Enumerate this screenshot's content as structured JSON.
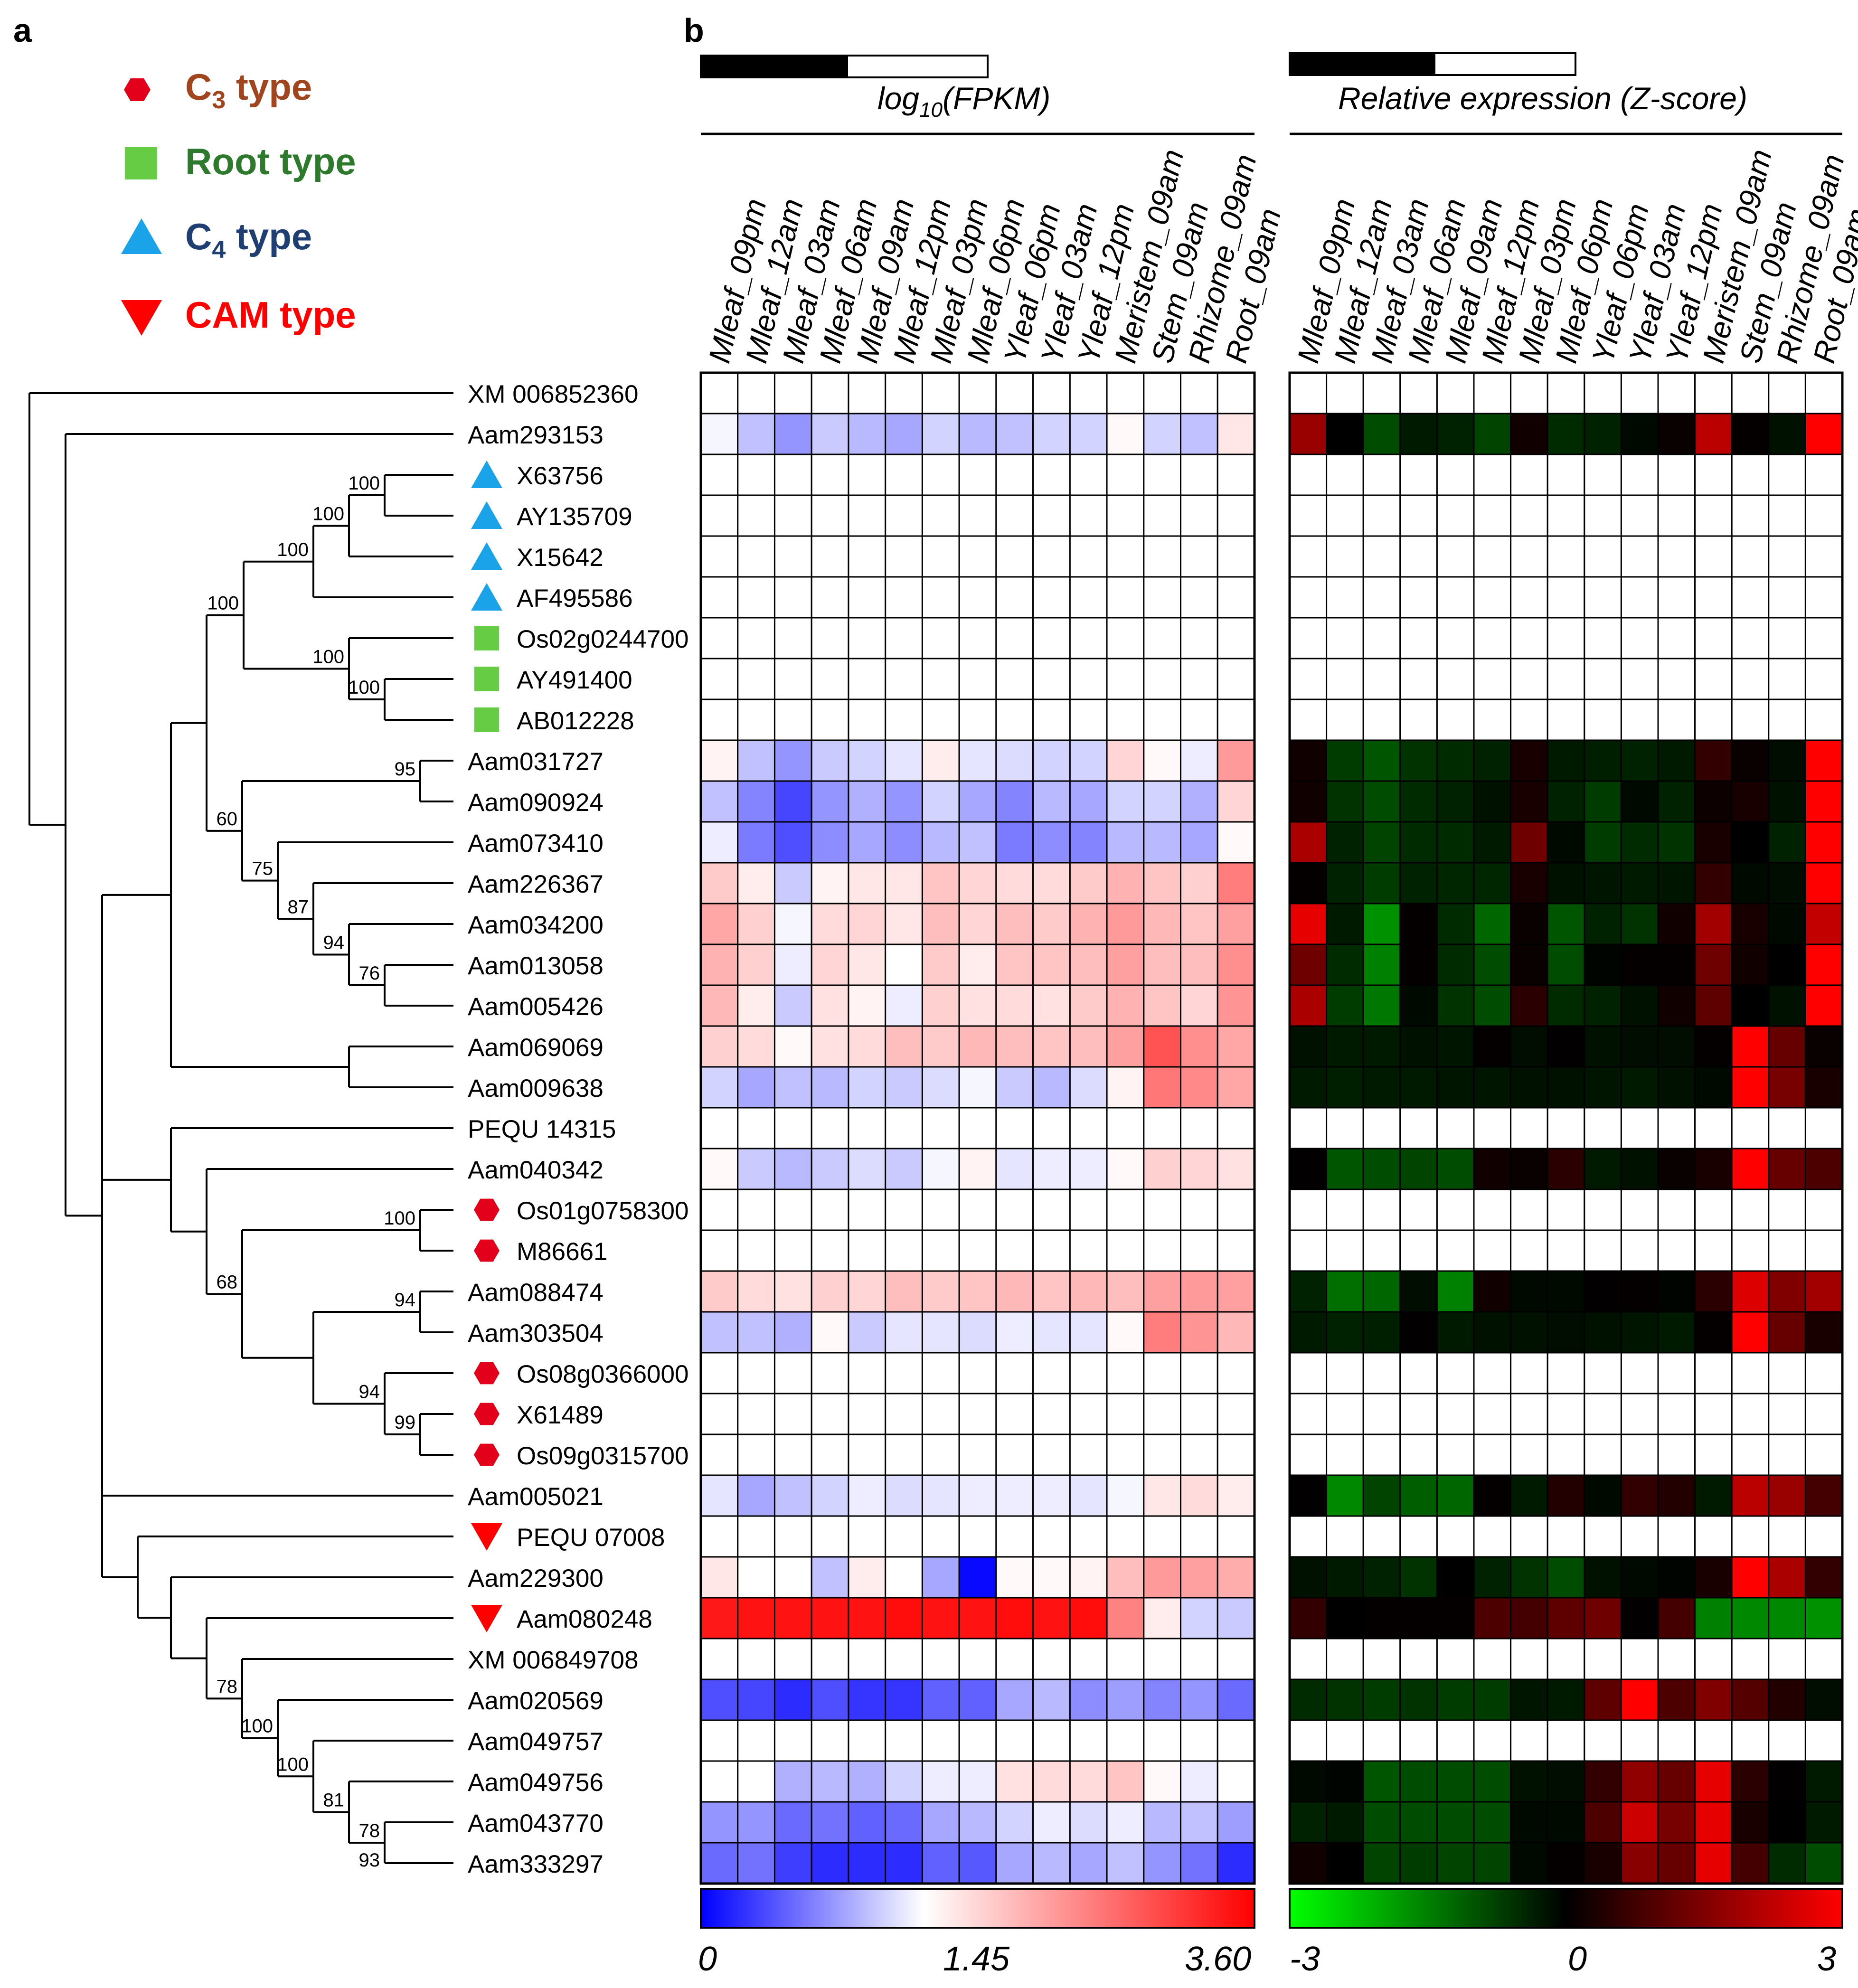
{
  "panels": {
    "a": "a",
    "b": "b"
  },
  "legend": [
    {
      "shape": "hexagon",
      "color": "#e3001b",
      "text_color": "#a0451e",
      "label": "C",
      "subscript": "3",
      "suffix": " type"
    },
    {
      "shape": "square",
      "color": "#66cc44",
      "text_color": "#2d7a2d",
      "label": "Root type",
      "subscript": "",
      "suffix": ""
    },
    {
      "shape": "triangle-up",
      "color": "#1aa3e8",
      "text_color": "#1f3f73",
      "label": "C",
      "subscript": "4",
      "suffix": " type"
    },
    {
      "shape": "triangle-down",
      "color": "#ff0000",
      "text_color": "#ff0000",
      "label": "CAM type",
      "subscript": "",
      "suffix": ""
    }
  ],
  "columns": [
    "Mleaf_09pm",
    "Mleaf_12am",
    "Mleaf_03am",
    "Mleaf_06am",
    "Mleaf_09am",
    "Mleaf_12pm",
    "Mleaf_03pm",
    "Mleaf_06pm",
    "Yleaf_06pm",
    "Yleaf_03am",
    "Yleaf_12pm",
    "Meristem_09am",
    "Stem_09am",
    "Rhizome_09am",
    "Root_09am"
  ],
  "fpkm_title": {
    "prefix": "log",
    "sub": "10",
    "suffix": "(FPKM)"
  },
  "z_title": "Relative expression (Z-score)",
  "fpkm_scale": {
    "min": "0",
    "mid": "1.45",
    "max": "3.60",
    "vmin": 0,
    "vmid": 1.45,
    "vmax": 3.6,
    "colors": [
      "#0000ff",
      "#ffffff",
      "#ff0000"
    ]
  },
  "z_scale": {
    "min": "-3",
    "mid": "0",
    "max": "3",
    "vmin": -3,
    "vmax": 3,
    "colors": [
      "#00ff00",
      "#000000",
      "#ff0000"
    ]
  },
  "genes": [
    {
      "name": "XM 006852360",
      "marker": null,
      "fpkm": null,
      "z": null
    },
    {
      "name": "Aam293153",
      "marker": null,
      "fpkm": [
        1.4,
        1.1,
        0.85,
        1.15,
        1.05,
        0.95,
        1.2,
        1.05,
        1.1,
        1.2,
        1.2,
        1.5,
        1.2,
        1.1,
        1.65
      ],
      "z": [
        1.8,
        0,
        -0.9,
        -0.3,
        -0.4,
        -0.8,
        0.2,
        -0.5,
        -0.4,
        -0.1,
        0.1,
        2.2,
        0.05,
        -0.2,
        3
      ]
    },
    {
      "name": "X63756",
      "marker": "triangle-up",
      "fpkm": null,
      "z": null
    },
    {
      "name": "AY135709",
      "marker": "triangle-up",
      "fpkm": null,
      "z": null
    },
    {
      "name": "X15642",
      "marker": "triangle-up",
      "fpkm": null,
      "z": null
    },
    {
      "name": "AF495586",
      "marker": "triangle-up",
      "fpkm": null,
      "z": null
    },
    {
      "name": "Os02g0244700",
      "marker": "square",
      "fpkm": null,
      "z": null
    },
    {
      "name": "AY491400",
      "marker": "square",
      "fpkm": null,
      "z": null
    },
    {
      "name": "AB012228",
      "marker": "square",
      "fpkm": null,
      "z": null
    },
    {
      "name": "Aam031727",
      "marker": null,
      "fpkm": [
        1.55,
        1.1,
        0.85,
        1.15,
        1.2,
        1.3,
        1.6,
        1.3,
        1.25,
        1.2,
        1.2,
        1.8,
        1.5,
        1.35,
        2.3
      ],
      "z": [
        0.2,
        -0.7,
        -1.0,
        -0.6,
        -0.5,
        -0.4,
        0.3,
        -0.3,
        -0.35,
        -0.4,
        -0.3,
        0.6,
        0.1,
        -0.15,
        3
      ]
    },
    {
      "name": "Aam090924",
      "marker": null,
      "fpkm": [
        1.1,
        0.75,
        0.4,
        0.85,
        1.0,
        0.85,
        1.2,
        0.95,
        0.75,
        1.05,
        0.95,
        1.2,
        1.2,
        1.0,
        1.8
      ],
      "z": [
        0.2,
        -0.6,
        -0.9,
        -0.5,
        -0.4,
        -0.2,
        0.3,
        -0.4,
        -0.7,
        -0.1,
        -0.4,
        0.15,
        0.3,
        -0.2,
        3
      ]
    },
    {
      "name": "Aam073410",
      "marker": null,
      "fpkm": [
        1.35,
        0.7,
        0.45,
        0.8,
        0.95,
        0.8,
        1.05,
        1.1,
        0.7,
        0.8,
        0.75,
        1.05,
        1.05,
        0.95,
        1.5
      ],
      "z": [
        2.0,
        -0.4,
        -0.8,
        -0.5,
        -0.5,
        -0.3,
        1.3,
        -0.1,
        -0.7,
        -0.5,
        -0.6,
        0.3,
        0.0,
        -0.4,
        3
      ]
    },
    {
      "name": "Aam226367",
      "marker": null,
      "fpkm": [
        1.9,
        1.6,
        1.15,
        1.55,
        1.65,
        1.65,
        1.95,
        1.8,
        1.75,
        1.75,
        1.9,
        2.1,
        1.95,
        1.85,
        2.55
      ],
      "z": [
        0.05,
        -0.4,
        -0.7,
        -0.4,
        -0.45,
        -0.45,
        0.3,
        -0.2,
        -0.25,
        -0.3,
        -0.25,
        0.6,
        -0.1,
        -0.15,
        3
      ]
    },
    {
      "name": "Aam034200",
      "marker": null,
      "fpkm": [
        2.2,
        1.85,
        1.4,
        1.75,
        1.8,
        1.65,
        2.0,
        1.8,
        2.0,
        1.9,
        2.1,
        2.3,
        2.05,
        1.95,
        2.25
      ],
      "z": [
        2.7,
        -0.3,
        -1.7,
        0.05,
        -0.5,
        -1.2,
        0.1,
        -1.0,
        -0.4,
        -0.6,
        0.2,
        1.9,
        0.3,
        -0.1,
        2.3
      ]
    },
    {
      "name": "Aam013058",
      "marker": null,
      "fpkm": [
        2.1,
        1.85,
        1.35,
        1.8,
        1.65,
        1.45,
        1.9,
        1.6,
        1.95,
        1.95,
        2.0,
        2.25,
        2.0,
        2.0,
        2.4
      ],
      "z": [
        1.3,
        -0.5,
        -1.5,
        0.05,
        -0.5,
        -0.9,
        0.1,
        -0.9,
        -0.05,
        0.05,
        0.05,
        1.3,
        0.2,
        0.0,
        3
      ]
    },
    {
      "name": "Aam005426",
      "marker": null,
      "fpkm": [
        2.05,
        1.6,
        1.15,
        1.7,
        1.55,
        1.35,
        1.85,
        1.7,
        1.75,
        1.7,
        1.9,
        2.1,
        1.95,
        1.8,
        2.35
      ],
      "z": [
        2.0,
        -0.7,
        -1.4,
        -0.1,
        -0.6,
        -0.9,
        0.5,
        -0.5,
        -0.4,
        -0.2,
        0.2,
        1.1,
        0.0,
        -0.2,
        3
      ]
    },
    {
      "name": "Aam069069",
      "marker": null,
      "fpkm": [
        1.85,
        1.75,
        1.5,
        1.7,
        1.75,
        2.0,
        1.9,
        2.05,
        2.0,
        1.95,
        2.0,
        2.25,
        2.9,
        2.4,
        2.2
      ],
      "z": [
        -0.2,
        -0.3,
        -0.3,
        -0.2,
        -0.25,
        0.05,
        -0.15,
        0.02,
        -0.2,
        -0.15,
        -0.15,
        0.05,
        3,
        1.2,
        0.1
      ]
    },
    {
      "name": "Aam009638",
      "marker": null,
      "fpkm": [
        1.2,
        0.95,
        1.1,
        1.05,
        1.2,
        1.15,
        1.25,
        1.4,
        1.15,
        1.05,
        1.25,
        1.55,
        2.6,
        2.45,
        2.2
      ],
      "z": [
        -0.3,
        -0.35,
        -0.3,
        -0.3,
        -0.25,
        -0.25,
        -0.2,
        -0.2,
        -0.25,
        -0.3,
        -0.2,
        -0.1,
        3,
        1.4,
        0.3
      ]
    },
    {
      "name": "PEQU 14315",
      "marker": null,
      "fpkm": null,
      "z": null
    },
    {
      "name": "Aam040342",
      "marker": null,
      "fpkm": [
        1.5,
        1.15,
        1.05,
        1.15,
        1.25,
        1.15,
        1.4,
        1.55,
        1.3,
        1.35,
        1.35,
        1.5,
        1.85,
        1.8,
        1.7
      ],
      "z": [
        0.02,
        -1.0,
        -0.9,
        -0.8,
        -0.9,
        0.2,
        0.1,
        0.5,
        -0.3,
        -0.2,
        0.1,
        0.3,
        3,
        1.2,
        0.9
      ]
    },
    {
      "name": "Os01g0758300",
      "marker": "hexagon",
      "fpkm": null,
      "z": null
    },
    {
      "name": "M86661",
      "marker": "hexagon",
      "fpkm": null,
      "z": null
    },
    {
      "name": "Aam088474",
      "marker": null,
      "fpkm": [
        1.9,
        1.75,
        1.7,
        1.85,
        1.8,
        2.0,
        1.9,
        1.95,
        2.05,
        1.95,
        2.05,
        2.0,
        2.25,
        2.3,
        2.25
      ],
      "z": [
        -0.4,
        -1.3,
        -1.2,
        -0.15,
        -1.5,
        0.2,
        -0.1,
        -0.1,
        0.02,
        0.05,
        -0.05,
        0.5,
        2.6,
        1.5,
        1.9
      ]
    },
    {
      "name": "Aam303504",
      "marker": null,
      "fpkm": [
        1.1,
        1.1,
        1.0,
        1.5,
        1.15,
        1.3,
        1.3,
        1.25,
        1.35,
        1.3,
        1.3,
        1.5,
        2.55,
        2.35,
        2.05
      ],
      "z": [
        -0.3,
        -0.4,
        -0.35,
        0.02,
        -0.3,
        -0.2,
        -0.2,
        -0.15,
        -0.2,
        -0.25,
        -0.3,
        0.05,
        3,
        1.2,
        0.3
      ]
    },
    {
      "name": "Os08g0366000",
      "marker": "hexagon",
      "fpkm": null,
      "z": null
    },
    {
      "name": "X61489",
      "marker": "hexagon",
      "fpkm": null,
      "z": null
    },
    {
      "name": "Os09g0315700",
      "marker": "hexagon",
      "fpkm": null,
      "z": null
    },
    {
      "name": "Aam005021",
      "marker": null,
      "fpkm": [
        1.3,
        0.95,
        1.1,
        1.2,
        1.35,
        1.25,
        1.3,
        1.35,
        1.35,
        1.35,
        1.3,
        1.4,
        1.65,
        1.75,
        1.6
      ],
      "z": [
        0.02,
        -1.6,
        -0.8,
        -1.1,
        -1.2,
        0.05,
        -0.3,
        0.4,
        -0.1,
        0.6,
        0.4,
        -0.3,
        2.2,
        1.8,
        0.8
      ]
    },
    {
      "name": "PEQU 07008",
      "marker": "triangle-down",
      "fpkm": null,
      "z": null
    },
    {
      "name": "Aam229300",
      "marker": null,
      "fpkm": [
        1.65,
        1.45,
        1.45,
        1.1,
        1.6,
        1.45,
        0.95,
        0.05,
        1.5,
        1.5,
        1.55,
        2.0,
        2.3,
        2.25,
        2.15
      ],
      "z": [
        -0.2,
        -0.3,
        -0.4,
        -0.6,
        0.0,
        -0.4,
        -0.6,
        -0.9,
        -0.2,
        -0.1,
        -0.05,
        0.3,
        3,
        2.0,
        0.6
      ]
    },
    {
      "name": "Aam080248",
      "marker": "triangle-down",
      "fpkm": [
        3.4,
        3.45,
        3.45,
        3.45,
        3.45,
        3.5,
        3.45,
        3.45,
        3.5,
        3.45,
        3.5,
        2.5,
        1.6,
        1.2,
        1.15
      ],
      "z": [
        0.6,
        0.0,
        0.05,
        0.05,
        0.05,
        0.9,
        0.8,
        1.1,
        1.3,
        0.02,
        0.8,
        -1.5,
        -1.6,
        -1.6,
        -1.7
      ]
    },
    {
      "name": "XM 006849708",
      "marker": null,
      "fpkm": null,
      "z": null
    },
    {
      "name": "Aam020569",
      "marker": null,
      "fpkm": [
        0.45,
        0.4,
        0.25,
        0.45,
        0.3,
        0.3,
        0.55,
        0.55,
        0.95,
        1.05,
        0.8,
        0.9,
        0.75,
        0.85,
        0.6
      ],
      "z": [
        -0.5,
        -0.6,
        -0.7,
        -0.6,
        -0.7,
        -0.7,
        -0.25,
        -0.3,
        1.1,
        3,
        0.9,
        1.5,
        1.0,
        0.4,
        -0.15
      ]
    },
    {
      "name": "Aam049757",
      "marker": null,
      "fpkm": null,
      "z": null
    },
    {
      "name": "Aam049756",
      "marker": null,
      "fpkm": [
        1.45,
        1.45,
        1.0,
        1.05,
        1.0,
        1.2,
        1.35,
        1.35,
        1.7,
        1.75,
        1.75,
        1.95,
        1.5,
        1.35,
        1.45
      ],
      "z": [
        -0.1,
        -0.05,
        -1.0,
        -0.9,
        -0.9,
        -0.9,
        -0.2,
        -0.15,
        0.6,
        1.7,
        1.2,
        2.7,
        0.5,
        0.02,
        -0.3
      ]
    },
    {
      "name": "Aam043770",
      "marker": null,
      "fpkm": [
        0.85,
        0.85,
        0.6,
        0.65,
        0.55,
        0.6,
        0.95,
        1.05,
        1.2,
        1.35,
        1.25,
        1.35,
        1.05,
        1.1,
        0.9
      ],
      "z": [
        -0.4,
        -0.3,
        -0.9,
        -0.9,
        -0.9,
        -0.9,
        -0.1,
        -0.1,
        0.9,
        2.4,
        1.4,
        2.7,
        0.3,
        0.0,
        -0.3
      ]
    },
    {
      "name": "Aam333297",
      "marker": null,
      "fpkm": [
        0.6,
        0.65,
        0.35,
        0.25,
        0.25,
        0.25,
        0.55,
        0.5,
        0.95,
        1.05,
        0.95,
        1.1,
        0.85,
        0.65,
        0.25
      ],
      "z": [
        0.2,
        0.0,
        -0.8,
        -0.7,
        -0.8,
        -0.8,
        -0.1,
        0.05,
        0.3,
        1.6,
        1.2,
        2.7,
        0.8,
        -0.5,
        -0.9
      ]
    }
  ],
  "bootstraps": [
    {
      "label": "100",
      "node": "n_x63756_ay135709"
    },
    {
      "label": "100",
      "node": "n_c4_3"
    },
    {
      "label": "100",
      "node": "n_c4_all"
    },
    {
      "label": "100",
      "node": "n_c4_root"
    },
    {
      "label": "100",
      "node": "n_ay491400_ab012228"
    },
    {
      "label": "100",
      "node": "n_root_all"
    },
    {
      "label": "95",
      "node": "n_031727_090924"
    },
    {
      "label": "60",
      "node": "n_clade_aam_a"
    },
    {
      "label": "75",
      "node": "n_073410_group"
    },
    {
      "label": "87",
      "node": "n_226367_group"
    },
    {
      "label": "94",
      "node": "n_034200_group"
    },
    {
      "label": "76",
      "node": "n_013058_005426"
    },
    {
      "label": "100",
      "node": "n_c3_a"
    },
    {
      "label": "94",
      "node": "n_088474_303504"
    },
    {
      "label": "68",
      "node": "n_c3_block"
    },
    {
      "label": "94",
      "node": "n_c3_b"
    },
    {
      "label": "99",
      "node": "n_x61489_os09"
    },
    {
      "label": "78",
      "node": "n_xm849708_group"
    },
    {
      "label": "100",
      "node": "n_020569_group"
    },
    {
      "label": "100",
      "node": "n_049757_group"
    },
    {
      "label": "81",
      "node": "n_049756_group"
    },
    {
      "label": "78",
      "node": "n_043770_333297"
    },
    {
      "label": "93",
      "node": "n_043770_333297"
    }
  ],
  "colors": {
    "frame": "#000000",
    "empty_cell": "#ffffff",
    "line": "#000000"
  }
}
